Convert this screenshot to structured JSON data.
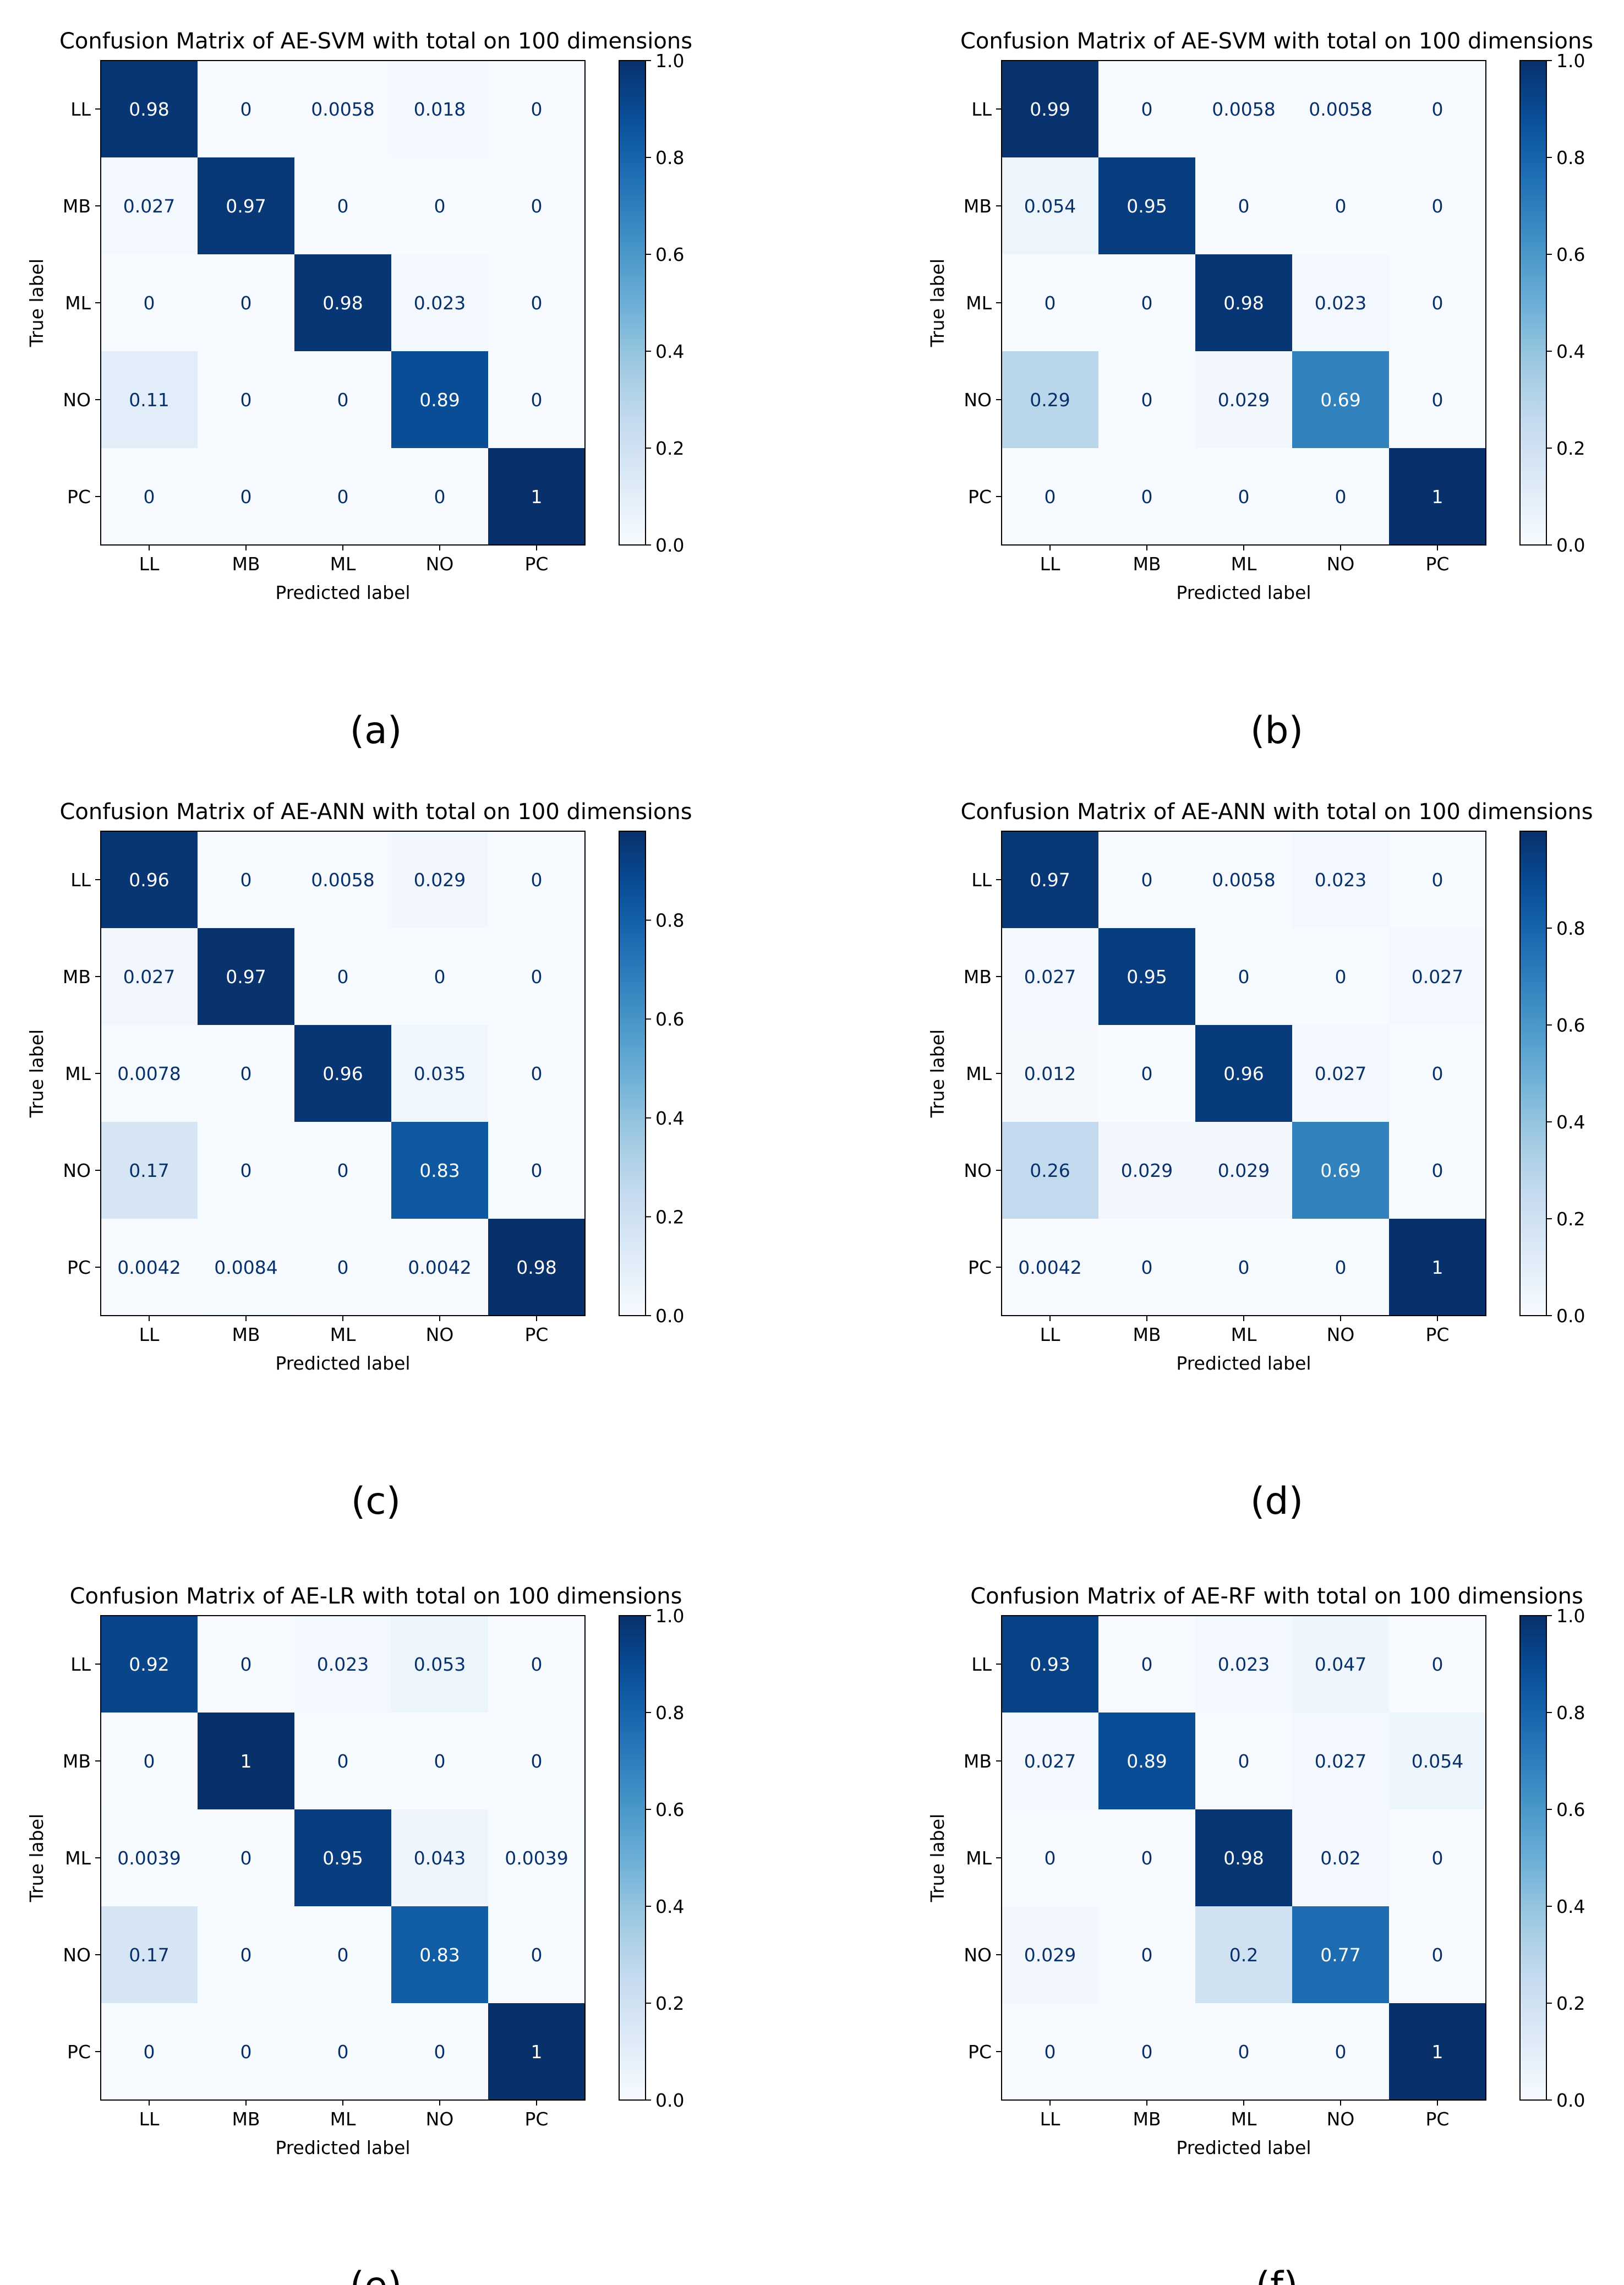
{
  "chart_data": [
    {
      "type": "heatmap",
      "title": "Confusion Matrix of AE-SVM with total on 100 dimensions",
      "caption": "(a)",
      "xlabel": "Predicted label",
      "ylabel": "True label",
      "x_categories": [
        "LL",
        "MB",
        "ML",
        "NO",
        "PC"
      ],
      "y_categories": [
        "LL",
        "MB",
        "ML",
        "NO",
        "PC"
      ],
      "values": [
        [
          "0.98",
          "0",
          "0.0058",
          "0.018",
          "0"
        ],
        [
          "0.027",
          "0.97",
          "0",
          "0",
          "0"
        ],
        [
          "0",
          "0",
          "0.98",
          "0.023",
          "0"
        ],
        [
          "0.11",
          "0",
          "0",
          "0.89",
          "0"
        ],
        [
          "0",
          "0",
          "0",
          "0",
          "1"
        ]
      ],
      "colorbar_ticks": [
        "0.0",
        "0.2",
        "0.4",
        "0.6",
        "0.8",
        "1.0"
      ],
      "colorbar_range": [
        0,
        1
      ],
      "colormap": "Blues"
    },
    {
      "type": "heatmap",
      "title": "Confusion Matrix of AE-SVM with total on 100 dimensions",
      "caption": "(b)",
      "xlabel": "Predicted label",
      "ylabel": "True label",
      "x_categories": [
        "LL",
        "MB",
        "ML",
        "NO",
        "PC"
      ],
      "y_categories": [
        "LL",
        "MB",
        "ML",
        "NO",
        "PC"
      ],
      "values": [
        [
          "0.99",
          "0",
          "0.0058",
          "0.0058",
          "0"
        ],
        [
          "0.054",
          "0.95",
          "0",
          "0",
          "0"
        ],
        [
          "0",
          "0",
          "0.98",
          "0.023",
          "0"
        ],
        [
          "0.29",
          "0",
          "0.029",
          "0.69",
          "0"
        ],
        [
          "0",
          "0",
          "0",
          "0",
          "1"
        ]
      ],
      "colorbar_ticks": [
        "0.0",
        "0.2",
        "0.4",
        "0.6",
        "0.8",
        "1.0"
      ],
      "colorbar_range": [
        0,
        1
      ],
      "colormap": "Blues"
    },
    {
      "type": "heatmap",
      "title": "Confusion Matrix of AE-ANN with total on 100 dimensions",
      "caption": "(c)",
      "xlabel": "Predicted label",
      "ylabel": "True label",
      "x_categories": [
        "LL",
        "MB",
        "ML",
        "NO",
        "PC"
      ],
      "y_categories": [
        "LL",
        "MB",
        "ML",
        "NO",
        "PC"
      ],
      "values": [
        [
          "0.96",
          "0",
          "0.0058",
          "0.029",
          "0"
        ],
        [
          "0.027",
          "0.97",
          "0",
          "0",
          "0"
        ],
        [
          "0.0078",
          "0",
          "0.96",
          "0.035",
          "0"
        ],
        [
          "0.17",
          "0",
          "0",
          "0.83",
          "0"
        ],
        [
          "0.0042",
          "0.0084",
          "0",
          "0.0042",
          "0.98"
        ]
      ],
      "colorbar_ticks": [
        "0.0",
        "0.2",
        "0.4",
        "0.6",
        "0.8"
      ],
      "colorbar_range": [
        0,
        0.98
      ],
      "colormap": "Blues"
    },
    {
      "type": "heatmap",
      "title": "Confusion Matrix of AE-ANN with total on 100 dimensions",
      "caption": "(d)",
      "xlabel": "Predicted label",
      "ylabel": "True label",
      "x_categories": [
        "LL",
        "MB",
        "ML",
        "NO",
        "PC"
      ],
      "y_categories": [
        "LL",
        "MB",
        "ML",
        "NO",
        "PC"
      ],
      "values": [
        [
          "0.97",
          "0",
          "0.0058",
          "0.023",
          "0"
        ],
        [
          "0.027",
          "0.95",
          "0",
          "0",
          "0.027"
        ],
        [
          "0.012",
          "0",
          "0.96",
          "0.027",
          "0"
        ],
        [
          "0.26",
          "0.029",
          "0.029",
          "0.69",
          "0"
        ],
        [
          "0.0042",
          "0",
          "0",
          "0",
          "1"
        ]
      ],
      "colorbar_ticks": [
        "0.0",
        "0.2",
        "0.4",
        "0.6",
        "0.8"
      ],
      "colorbar_range": [
        0,
        1
      ],
      "colormap": "Blues"
    },
    {
      "type": "heatmap",
      "title": "Confusion Matrix of AE-LR with total on 100 dimensions",
      "caption": "(e)",
      "xlabel": "Predicted label",
      "ylabel": "True label",
      "x_categories": [
        "LL",
        "MB",
        "ML",
        "NO",
        "PC"
      ],
      "y_categories": [
        "LL",
        "MB",
        "ML",
        "NO",
        "PC"
      ],
      "values": [
        [
          "0.92",
          "0",
          "0.023",
          "0.053",
          "0"
        ],
        [
          "0",
          "1",
          "0",
          "0",
          "0"
        ],
        [
          "0.0039",
          "0",
          "0.95",
          "0.043",
          "0.0039"
        ],
        [
          "0.17",
          "0",
          "0",
          "0.83",
          "0"
        ],
        [
          "0",
          "0",
          "0",
          "0",
          "1"
        ]
      ],
      "colorbar_ticks": [
        "0.0",
        "0.2",
        "0.4",
        "0.6",
        "0.8",
        "1.0"
      ],
      "colorbar_range": [
        0,
        1
      ],
      "colormap": "Blues"
    },
    {
      "type": "heatmap",
      "title": "Confusion Matrix of AE-RF with total on 100 dimensions",
      "caption": "(f)",
      "xlabel": "Predicted label",
      "ylabel": "True label",
      "x_categories": [
        "LL",
        "MB",
        "ML",
        "NO",
        "PC"
      ],
      "y_categories": [
        "LL",
        "MB",
        "ML",
        "NO",
        "PC"
      ],
      "values": [
        [
          "0.93",
          "0",
          "0.023",
          "0.047",
          "0"
        ],
        [
          "0.027",
          "0.89",
          "0",
          "0.027",
          "0.054"
        ],
        [
          "0",
          "0",
          "0.98",
          "0.02",
          "0"
        ],
        [
          "0.029",
          "0",
          "0.2",
          "0.77",
          "0"
        ],
        [
          "0",
          "0",
          "0",
          "0",
          "1"
        ]
      ],
      "colorbar_ticks": [
        "0.0",
        "0.2",
        "0.4",
        "0.6",
        "0.8",
        "1.0"
      ],
      "colorbar_range": [
        0,
        1
      ],
      "colormap": "Blues"
    }
  ]
}
